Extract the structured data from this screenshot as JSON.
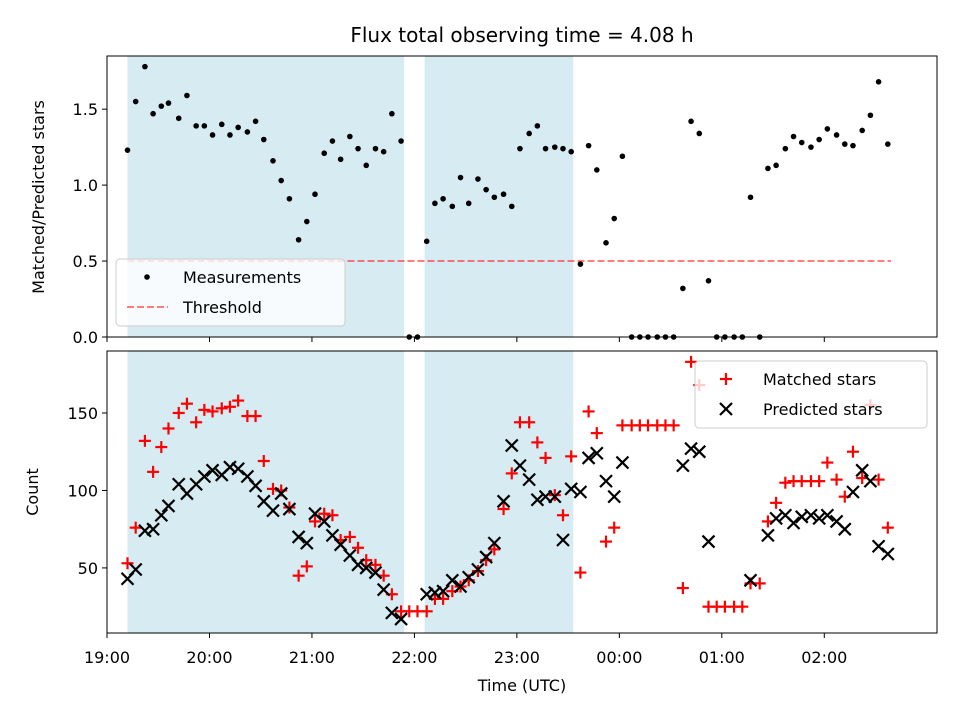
{
  "chart_data": [
    {
      "type": "scatter",
      "title": "Flux total observing time = 4.08 h",
      "xlabel": "",
      "ylabel": "Matched/Predicted stars",
      "ylim": [
        0,
        1.85
      ],
      "yticks": [
        0.0,
        0.5,
        1.0,
        1.5
      ],
      "ytick_labels": [
        "0.0",
        "0.5",
        "1.0",
        "1.5"
      ],
      "xlim": [
        19.0,
        27.1
      ],
      "xticks": [
        19,
        20,
        21,
        22,
        23,
        24,
        25,
        26
      ],
      "shaded_spans": [
        [
          19.2,
          21.9
        ],
        [
          22.1,
          23.55
        ]
      ],
      "legend": {
        "position": "lower left",
        "entries": [
          "Measurements",
          "Threshold"
        ]
      },
      "threshold": {
        "value": 0.5,
        "x_start": 19.2,
        "x_end": 26.65
      },
      "series": [
        {
          "name": "Measurements",
          "marker": "dot",
          "x": [
            19.2,
            19.28,
            19.37,
            19.45,
            19.53,
            19.6,
            19.7,
            19.78,
            19.87,
            19.95,
            20.03,
            20.12,
            20.2,
            20.28,
            20.37,
            20.45,
            20.53,
            20.62,
            20.7,
            20.78,
            20.87,
            20.95,
            21.03,
            21.12,
            21.2,
            21.28,
            21.37,
            21.45,
            21.53,
            21.62,
            21.7,
            21.78,
            21.87,
            21.95,
            22.03,
            22.12,
            22.2,
            22.28,
            22.37,
            22.45,
            22.53,
            22.62,
            22.7,
            22.78,
            22.87,
            22.95,
            23.03,
            23.12,
            23.2,
            23.28,
            23.37,
            23.45,
            23.53,
            23.62,
            23.7,
            23.78,
            23.87,
            23.95,
            24.03,
            24.12,
            24.2,
            24.28,
            24.37,
            24.45,
            24.53,
            24.62,
            24.7,
            24.78,
            24.87,
            24.95,
            25.03,
            25.12,
            25.2,
            25.28,
            25.37,
            25.45,
            25.53,
            25.62,
            25.7,
            25.78,
            25.87,
            25.95,
            26.03,
            26.12,
            26.2,
            26.28,
            26.37,
            26.45,
            26.53,
            26.62
          ],
          "y": [
            1.23,
            1.55,
            1.78,
            1.47,
            1.52,
            1.54,
            1.44,
            1.59,
            1.39,
            1.39,
            1.33,
            1.4,
            1.33,
            1.38,
            1.35,
            1.42,
            1.3,
            1.16,
            1.03,
            0.91,
            0.64,
            0.76,
            0.94,
            1.21,
            1.29,
            1.17,
            1.32,
            1.24,
            1.13,
            1.24,
            1.22,
            1.47,
            1.29,
            0.0,
            0.0,
            0.63,
            0.88,
            0.91,
            0.86,
            1.05,
            0.88,
            1.04,
            0.97,
            0.92,
            0.94,
            0.86,
            1.24,
            1.34,
            1.39,
            1.24,
            1.25,
            1.24,
            1.22,
            0.48,
            1.26,
            1.1,
            0.62,
            0.78,
            1.19,
            0.0,
            0.0,
            0.0,
            0.0,
            0.0,
            0.0,
            0.32,
            1.42,
            1.34,
            0.37,
            0.0,
            0.0,
            0.0,
            0.0,
            0.92,
            0.0,
            1.11,
            1.13,
            1.24,
            1.32,
            1.28,
            1.25,
            1.3,
            1.37,
            1.33,
            1.27,
            1.26,
            1.36,
            1.46,
            1.68,
            1.27
          ]
        }
      ]
    },
    {
      "type": "scatter",
      "title": "",
      "xlabel": "Time (UTC)",
      "ylabel": "Count",
      "ylim": [
        8,
        190
      ],
      "yticks": [
        50,
        100,
        150
      ],
      "ytick_labels": [
        "50",
        "100",
        "150"
      ],
      "xlim": [
        19.0,
        27.1
      ],
      "xticks": [
        19,
        20,
        21,
        22,
        23,
        24,
        25,
        26
      ],
      "xtick_labels": [
        "19:00",
        "20:00",
        "21:00",
        "22:00",
        "23:00",
        "00:00",
        "01:00",
        "02:00"
      ],
      "shaded_spans": [
        [
          19.2,
          21.9
        ],
        [
          22.1,
          23.55
        ]
      ],
      "legend": {
        "position": "upper right",
        "entries": [
          "Matched stars",
          "Predicted stars"
        ]
      },
      "series": [
        {
          "name": "Matched stars",
          "marker": "plus",
          "color": "#ff0000",
          "x": [
            19.2,
            19.28,
            19.37,
            19.45,
            19.53,
            19.6,
            19.7,
            19.78,
            19.87,
            19.95,
            20.03,
            20.12,
            20.2,
            20.28,
            20.37,
            20.45,
            20.53,
            20.62,
            20.7,
            20.78,
            20.87,
            20.95,
            21.03,
            21.12,
            21.2,
            21.28,
            21.37,
            21.45,
            21.53,
            21.62,
            21.7,
            21.78,
            21.87,
            21.95,
            22.03,
            22.12,
            22.2,
            22.28,
            22.37,
            22.45,
            22.53,
            22.62,
            22.7,
            22.78,
            22.87,
            22.95,
            23.03,
            23.12,
            23.2,
            23.28,
            23.37,
            23.45,
            23.53,
            23.62,
            23.7,
            23.78,
            23.87,
            23.95,
            24.03,
            24.12,
            24.2,
            24.28,
            24.37,
            24.45,
            24.53,
            24.62,
            24.7,
            24.78,
            24.87,
            24.95,
            25.03,
            25.12,
            25.2,
            25.28,
            25.37,
            25.45,
            25.53,
            25.62,
            25.7,
            25.78,
            25.87,
            25.95,
            26.03,
            26.12,
            26.2,
            26.28,
            26.37,
            26.45,
            26.53,
            26.62
          ],
          "y": [
            53,
            76,
            132,
            112,
            128,
            140,
            150,
            156,
            144,
            152,
            151,
            153,
            154,
            158,
            148,
            148,
            119,
            101,
            100,
            89,
            45,
            51,
            80,
            85,
            84,
            68,
            70,
            63,
            55,
            52,
            45,
            33,
            22,
            22,
            22,
            22,
            30,
            30,
            35,
            38,
            42,
            48,
            55,
            62,
            88,
            111,
            144,
            144,
            131,
            121,
            97,
            84,
            122,
            47,
            151,
            137,
            67,
            76,
            142,
            142,
            142,
            142,
            142,
            142,
            142,
            37,
            183,
            168,
            25,
            25,
            25,
            25,
            25,
            40,
            40,
            80,
            92,
            105,
            106,
            106,
            106,
            106,
            118,
            107,
            96,
            125,
            108,
            155,
            107,
            76
          ]
        },
        {
          "name": "Predicted stars",
          "marker": "x",
          "color": "#000000",
          "x": [
            19.2,
            19.28,
            19.37,
            19.45,
            19.53,
            19.6,
            19.7,
            19.78,
            19.87,
            19.95,
            20.03,
            20.12,
            20.2,
            20.28,
            20.37,
            20.45,
            20.53,
            20.62,
            20.7,
            20.78,
            20.87,
            20.95,
            21.03,
            21.12,
            21.2,
            21.28,
            21.37,
            21.45,
            21.53,
            21.62,
            21.7,
            21.78,
            21.87,
            22.12,
            22.2,
            22.28,
            22.37,
            22.45,
            22.53,
            22.62,
            22.7,
            22.78,
            22.87,
            22.95,
            23.03,
            23.12,
            23.2,
            23.28,
            23.37,
            23.45,
            23.53,
            23.62,
            23.7,
            23.78,
            23.87,
            23.95,
            24.03,
            24.62,
            24.7,
            24.78,
            24.87,
            25.28,
            25.45,
            25.53,
            25.62,
            25.7,
            25.78,
            25.87,
            25.95,
            26.03,
            26.12,
            26.2,
            26.28,
            26.37,
            26.45,
            26.53,
            26.62
          ],
          "y": [
            43,
            49,
            74,
            75,
            84,
            90,
            104,
            98,
            104,
            109,
            113,
            110,
            115,
            114,
            109,
            103,
            93,
            87,
            98,
            88,
            70,
            66,
            85,
            80,
            71,
            65,
            58,
            52,
            50,
            47,
            36,
            21,
            17,
            33,
            34,
            35,
            42,
            38,
            44,
            49,
            57,
            66,
            93,
            129,
            116,
            107,
            94,
            96,
            96,
            68,
            101,
            99,
            121,
            124,
            106,
            96,
            118,
            116,
            127,
            125,
            67,
            42,
            71,
            82,
            84,
            79,
            83,
            84,
            82,
            84,
            80,
            75,
            99,
            113,
            106,
            64,
            59
          ]
        }
      ]
    }
  ]
}
